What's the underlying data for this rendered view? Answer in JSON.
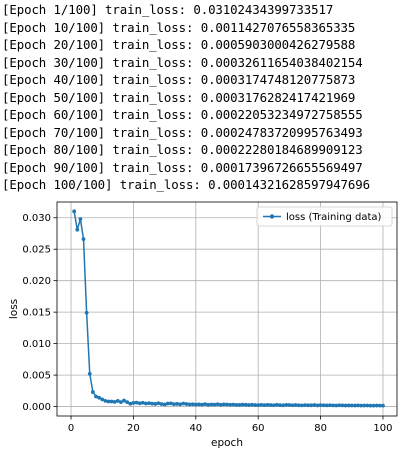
{
  "log_lines": [
    "[Epoch 1/100] train_loss: 0.03102434399733517",
    "[Epoch 10/100] train_loss: 0.0011427076558365335",
    "[Epoch 20/100] train_loss: 0.0005903000426279588",
    "[Epoch 30/100] train_loss: 0.00032611654038402154",
    "[Epoch 40/100] train_loss: 0.0003174748120775873",
    "[Epoch 50/100] train_loss: 0.0003176282417421969",
    "[Epoch 60/100] train_loss: 0.00022053234972758555",
    "[Epoch 70/100] train_loss: 0.00024783720995763493",
    "[Epoch 80/100] train_loss: 0.00022280184689909123",
    "[Epoch 90/100] train_loss: 0.00017396726655569497",
    "[Epoch 100/100] train_loss: 0.00014321628597947696"
  ],
  "chart_data": {
    "type": "line",
    "title": "",
    "xlabel": "epoch",
    "ylabel": "loss",
    "xlim": [
      -4.5,
      104.5
    ],
    "ylim": [
      -0.0015,
      0.0325
    ],
    "xticks": [
      0,
      20,
      40,
      60,
      80,
      100
    ],
    "xtick_labels": [
      "0",
      "20",
      "40",
      "60",
      "80",
      "100"
    ],
    "yticks": [
      0.0,
      0.005,
      0.01,
      0.015,
      0.02,
      0.025,
      0.03
    ],
    "ytick_labels": [
      "0.000",
      "0.005",
      "0.010",
      "0.015",
      "0.020",
      "0.025",
      "0.030"
    ],
    "grid": true,
    "legend_position": "top-right",
    "color": "#1f77b4",
    "series": [
      {
        "name": "loss (Training data)",
        "marker": "dot",
        "x": [
          1,
          2,
          3,
          4,
          5,
          6,
          7,
          8,
          9,
          10,
          11,
          12,
          13,
          14,
          15,
          16,
          17,
          18,
          19,
          20,
          21,
          22,
          23,
          24,
          25,
          26,
          27,
          28,
          29,
          30,
          31,
          32,
          33,
          34,
          35,
          36,
          37,
          38,
          39,
          40,
          41,
          42,
          43,
          44,
          45,
          46,
          47,
          48,
          49,
          50,
          51,
          52,
          53,
          54,
          55,
          56,
          57,
          58,
          59,
          60,
          61,
          62,
          63,
          64,
          65,
          66,
          67,
          68,
          69,
          70,
          71,
          72,
          73,
          74,
          75,
          76,
          77,
          78,
          79,
          80,
          81,
          82,
          83,
          84,
          85,
          86,
          87,
          88,
          89,
          90,
          91,
          92,
          93,
          94,
          95,
          96,
          97,
          98,
          99,
          100
        ],
        "y": [
          0.03102,
          0.0281,
          0.0298,
          0.0266,
          0.0149,
          0.0052,
          0.0023,
          0.0016,
          0.0014,
          0.00114,
          0.0009,
          0.0008,
          0.0008,
          0.00075,
          0.0009,
          0.0007,
          0.00095,
          0.0007,
          0.00045,
          0.00059,
          0.00062,
          0.00052,
          0.0006,
          0.00048,
          0.00055,
          0.00046,
          0.00042,
          0.00052,
          0.0004,
          0.00033,
          0.00048,
          0.0005,
          0.00038,
          0.00042,
          0.00036,
          0.00049,
          0.0004,
          0.00034,
          0.00036,
          0.00032,
          0.00035,
          0.0003,
          0.00038,
          0.00029,
          0.00033,
          0.00031,
          0.00036,
          0.00028,
          0.00034,
          0.00032,
          0.00029,
          0.00031,
          0.00027,
          0.00026,
          0.0003,
          0.00028,
          0.00025,
          0.00029,
          0.00024,
          0.00022,
          0.00027,
          0.00023,
          0.00026,
          0.00024,
          0.00021,
          0.00028,
          0.00022,
          0.0002,
          0.00026,
          0.00025,
          0.00021,
          0.00024,
          0.0002,
          0.00019,
          0.00023,
          0.00021,
          0.0002,
          0.00024,
          0.00018,
          0.00022,
          0.0002,
          0.00019,
          0.00021,
          0.00018,
          0.00017,
          0.0002,
          0.00019,
          0.00016,
          0.00018,
          0.00017,
          0.00016,
          0.00018,
          0.00015,
          0.00016,
          0.00017,
          0.00015,
          0.00014,
          0.00016,
          0.00015,
          0.00014
        ]
      }
    ]
  }
}
